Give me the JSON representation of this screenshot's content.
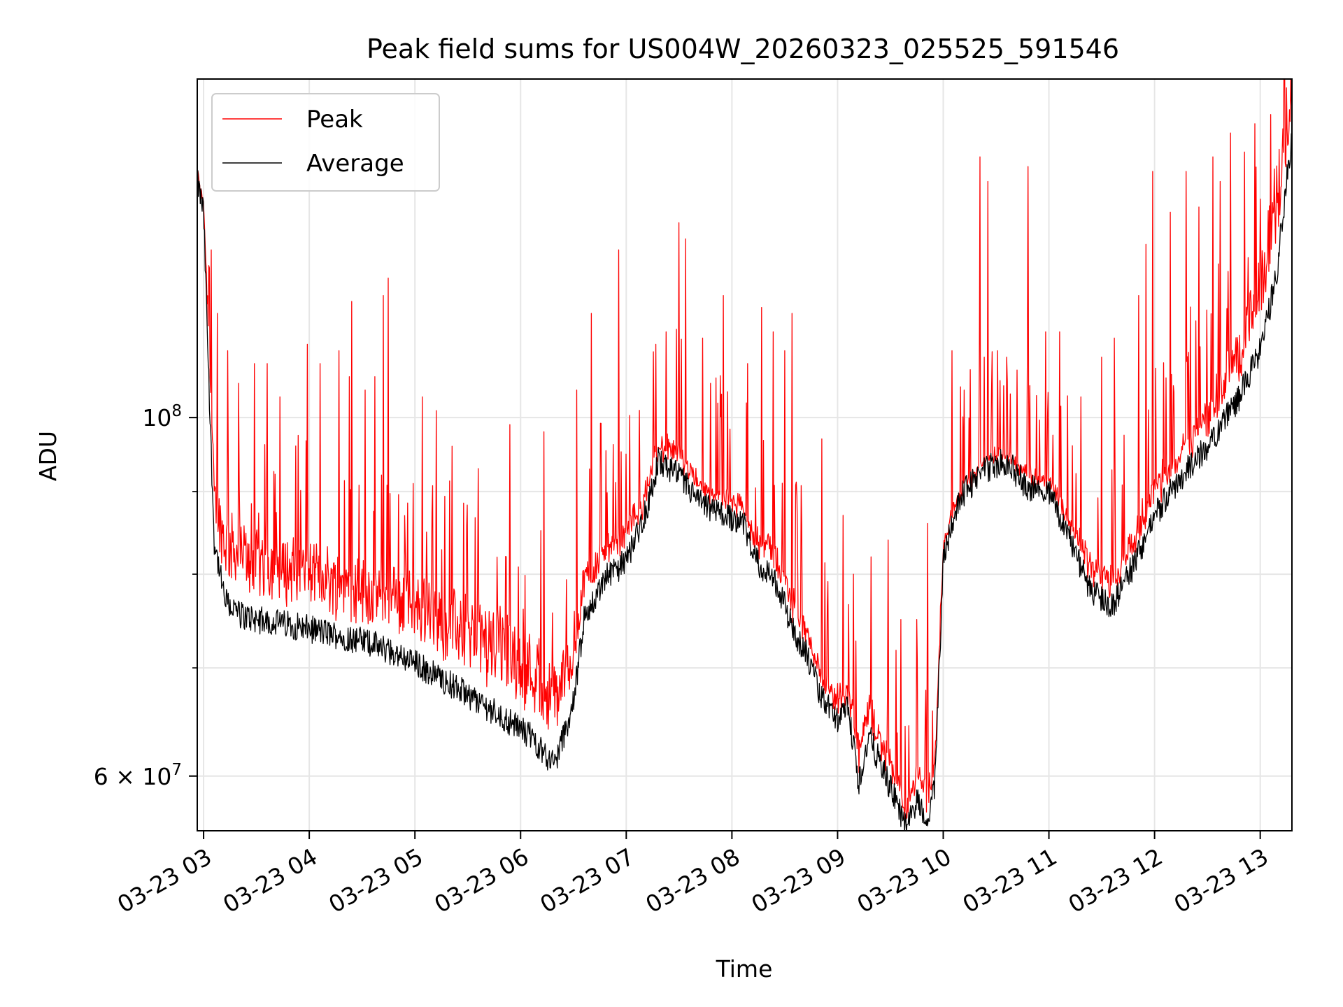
{
  "chart_data": {
    "type": "line",
    "title": "Peak field sums for US004W_20260323_025525_591546",
    "xlabel": "Time",
    "ylabel": "ADU",
    "y_scale": "log",
    "ylim": [
      55500000,
      162000000
    ],
    "xlim_hours": [
      2.94,
      13.3
    ],
    "grid": true,
    "legend_position": "upper-left",
    "x_ticks": [
      {
        "hour": 3,
        "label": "03-23 03"
      },
      {
        "hour": 4,
        "label": "03-23 04"
      },
      {
        "hour": 5,
        "label": "03-23 05"
      },
      {
        "hour": 6,
        "label": "03-23 06"
      },
      {
        "hour": 7,
        "label": "03-23 07"
      },
      {
        "hour": 8,
        "label": "03-23 08"
      },
      {
        "hour": 9,
        "label": "03-23 09"
      },
      {
        "hour": 10,
        "label": "03-23 10"
      },
      {
        "hour": 11,
        "label": "03-23 11"
      },
      {
        "hour": 12,
        "label": "03-23 12"
      },
      {
        "hour": 13,
        "label": "03-23 13"
      }
    ],
    "y_ticks_major": [
      {
        "value": 100000000,
        "mantissa": "10",
        "exponent": "8"
      },
      {
        "value": 60000000,
        "mantissa": "6 × 10",
        "exponent": "7"
      }
    ],
    "y_ticks_minor": [
      70000000,
      80000000,
      90000000
    ],
    "series": [
      {
        "name": "Peak",
        "color": "#ff0000",
        "base_hours": [
          2.94,
          3.0,
          3.05,
          3.1,
          3.2,
          3.35,
          3.5,
          3.8,
          4.2,
          4.6,
          5.0,
          5.4,
          5.8,
          6.1,
          6.32,
          6.5,
          6.6,
          6.8,
          7.0,
          7.2,
          7.3,
          7.5,
          7.7,
          7.9,
          8.1,
          8.2,
          8.4,
          8.6,
          8.7,
          8.85,
          9.0,
          9.1,
          9.2,
          9.3,
          9.45,
          9.55,
          9.65,
          9.75,
          9.85,
          9.92,
          10.0,
          10.1,
          10.2,
          10.4,
          10.6,
          10.8,
          11.0,
          11.2,
          11.4,
          11.6,
          11.8,
          12.0,
          12.2,
          12.5,
          12.8,
          13.0,
          13.15,
          13.3
        ],
        "base_values": [
          141000000,
          136000000,
          112000000,
          89000000,
          84000000,
          82000000,
          81500000,
          80500000,
          79500000,
          78000000,
          76500000,
          74000000,
          72000000,
          70000000,
          67000000,
          72000000,
          79000000,
          82500000,
          84500000,
          90000000,
          96000000,
          95000000,
          91000000,
          89000000,
          88000000,
          84500000,
          82500000,
          76000000,
          74000000,
          69000000,
          67000000,
          68000000,
          62000000,
          66000000,
          62000000,
          60000000,
          57000000,
          60000000,
          58000000,
          61000000,
          83000000,
          88000000,
          91000000,
          94000000,
          95000000,
          92000000,
          91500000,
          86000000,
          81000000,
          79000000,
          84000000,
          90000000,
          94000000,
          100000000,
          110000000,
          120000000,
          135000000,
          158000000
        ],
        "spikes": [
          [
            3.07,
            127000000
          ],
          [
            3.13,
            116000000
          ],
          [
            3.23,
            110000000
          ],
          [
            3.33,
            105000000
          ],
          [
            3.48,
            108000000
          ],
          [
            3.6,
            108000000
          ],
          [
            3.72,
            103000000
          ],
          [
            3.98,
            111000000
          ],
          [
            4.1,
            108000000
          ],
          [
            4.28,
            110000000
          ],
          [
            4.38,
            106000000
          ],
          [
            4.4,
            118000000
          ],
          [
            4.53,
            104000000
          ],
          [
            4.62,
            106000000
          ],
          [
            4.7,
            119000000
          ],
          [
            4.75,
            122000000
          ],
          [
            5.07,
            103000000
          ],
          [
            5.2,
            101000000
          ],
          [
            5.35,
            96000000
          ],
          [
            5.6,
            93000000
          ],
          [
            5.9,
            99000000
          ],
          [
            6.22,
            98000000
          ],
          [
            6.53,
            104000000
          ],
          [
            6.67,
            116000000
          ],
          [
            6.93,
            127000000
          ],
          [
            7.28,
            111000000
          ],
          [
            7.38,
            113000000
          ],
          [
            7.5,
            132000000
          ],
          [
            7.56,
            129000000
          ],
          [
            7.72,
            112000000
          ],
          [
            7.8,
            105000000
          ],
          [
            7.92,
            119000000
          ],
          [
            8.15,
            108000000
          ],
          [
            8.28,
            117000000
          ],
          [
            8.39,
            113000000
          ],
          [
            8.5,
            110000000
          ],
          [
            8.57,
            116000000
          ],
          [
            8.85,
            97000000
          ],
          [
            9.05,
            87000000
          ],
          [
            9.15,
            80000000
          ],
          [
            9.32,
            82000000
          ],
          [
            9.48,
            84000000
          ],
          [
            9.6,
            75000000
          ],
          [
            9.75,
            75000000
          ],
          [
            9.85,
            86000000
          ],
          [
            10.08,
            110000000
          ],
          [
            10.2,
            104000000
          ],
          [
            10.35,
            145000000
          ],
          [
            10.42,
            140000000
          ],
          [
            10.6,
            109000000
          ],
          [
            10.7,
            107000000
          ],
          [
            10.8,
            143000000
          ],
          [
            10.97,
            113000000
          ],
          [
            11.1,
            113000000
          ],
          [
            11.3,
            103000000
          ],
          [
            11.5,
            109000000
          ],
          [
            11.62,
            112000000
          ],
          [
            11.85,
            119000000
          ],
          [
            11.92,
            128000000
          ],
          [
            11.98,
            142000000
          ],
          [
            12.15,
            134000000
          ],
          [
            12.3,
            142000000
          ],
          [
            12.42,
            135000000
          ],
          [
            12.55,
            145000000
          ],
          [
            12.62,
            140000000
          ],
          [
            12.72,
            150000000
          ],
          [
            12.85,
            146000000
          ],
          [
            12.95,
            152000000
          ],
          [
            13.1,
            154000000
          ],
          [
            13.25,
            160000000
          ]
        ]
      },
      {
        "name": "Average",
        "color": "#000000",
        "base_hours": [
          2.94,
          3.0,
          3.05,
          3.1,
          3.2,
          3.35,
          3.5,
          3.8,
          4.2,
          4.6,
          5.0,
          5.4,
          5.8,
          6.1,
          6.32,
          6.5,
          6.6,
          6.8,
          7.0,
          7.2,
          7.3,
          7.5,
          7.7,
          7.9,
          8.1,
          8.2,
          8.4,
          8.6,
          8.7,
          8.85,
          9.0,
          9.1,
          9.2,
          9.3,
          9.45,
          9.55,
          9.65,
          9.75,
          9.85,
          9.92,
          10.0,
          10.1,
          10.2,
          10.4,
          10.6,
          10.8,
          11.0,
          11.2,
          11.4,
          11.6,
          11.8,
          12.0,
          12.2,
          12.5,
          12.8,
          13.0,
          13.15,
          13.3
        ],
        "base_values": [
          140000000,
          134000000,
          105000000,
          84000000,
          77000000,
          75500000,
          75000000,
          74500000,
          73500000,
          72500000,
          70500000,
          68000000,
          65500000,
          63500000,
          61000000,
          66500000,
          75000000,
          79500000,
          81500000,
          88000000,
          94000000,
          92000000,
          88500000,
          87000000,
          86500000,
          82000000,
          79500000,
          73500000,
          71500000,
          67000000,
          65000000,
          66000000,
          59500000,
          63500000,
          60000000,
          58000000,
          55800000,
          58000000,
          56500000,
          59000000,
          82000000,
          87000000,
          90000000,
          93000000,
          94000000,
          90500000,
          90000000,
          84000000,
          78000000,
          76500000,
          81000000,
          87000000,
          91000000,
          96000000,
          103000000,
          110000000,
          122000000,
          150000000
        ]
      }
    ]
  }
}
